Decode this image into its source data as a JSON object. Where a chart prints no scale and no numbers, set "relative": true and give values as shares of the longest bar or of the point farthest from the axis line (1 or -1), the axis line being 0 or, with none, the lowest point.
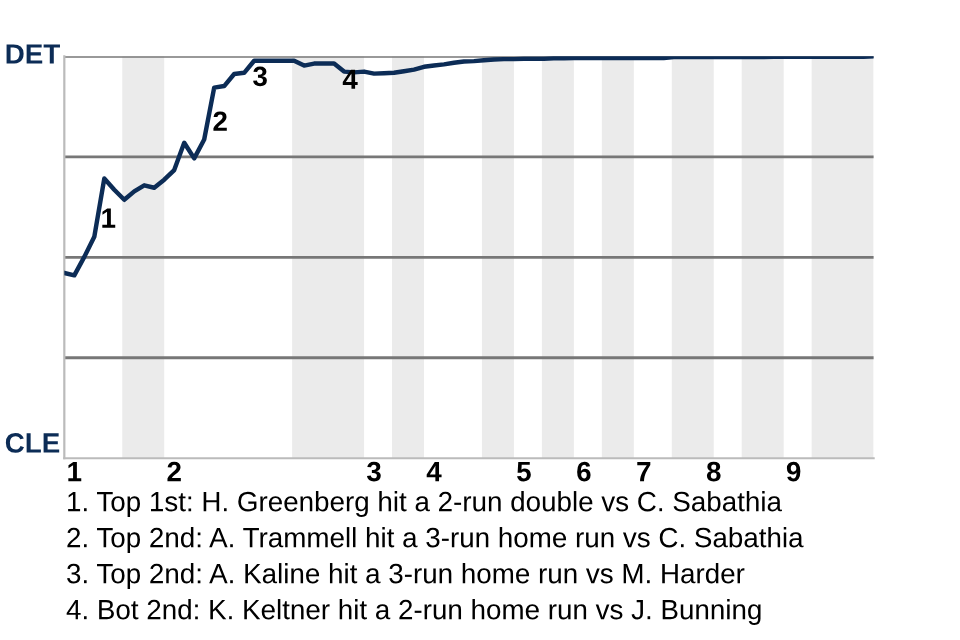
{
  "chart_data": {
    "type": "line",
    "relative": true,
    "categories": [
      null,
      "1",
      null,
      null,
      null,
      null,
      null,
      null,
      null,
      null,
      null,
      "2",
      null,
      null,
      null,
      null,
      null,
      null,
      null,
      null,
      null,
      null,
      null,
      null,
      null,
      null,
      null,
      null,
      null,
      null,
      null,
      "3",
      null,
      null,
      null,
      null,
      null,
      "4",
      null,
      null,
      null,
      null,
      null,
      null,
      null,
      null,
      "5",
      null,
      null,
      null,
      null,
      null,
      "6",
      null,
      null,
      null,
      null,
      null,
      "7",
      null,
      null,
      null,
      null,
      null,
      null,
      "8",
      null,
      null,
      null,
      null,
      null,
      null,
      null,
      "9",
      null,
      null,
      null,
      null,
      null,
      null,
      null,
      null
    ],
    "series": [
      {
        "color": "#0c2c56",
        "values": [
          0.461,
          0.455,
          0.501,
          0.551,
          0.696,
          0.668,
          0.643,
          0.664,
          0.679,
          0.673,
          0.693,
          0.717,
          0.785,
          0.746,
          0.793,
          0.922,
          0.926,
          0.956,
          0.959,
          0.989,
          0.989,
          0.989,
          0.989,
          0.989,
          0.977,
          0.982,
          0.982,
          0.982,
          0.962,
          0.96,
          0.962,
          0.957,
          0.958,
          0.959,
          0.963,
          0.967,
          0.974,
          0.977,
          0.98,
          0.984,
          0.987,
          0.988,
          0.99,
          0.992,
          0.993,
          0.993,
          0.994,
          0.994,
          0.994,
          0.995,
          0.995,
          0.996,
          0.996,
          0.996,
          0.996,
          0.996,
          0.996,
          0.996,
          0.996,
          0.996,
          0.996,
          0.998,
          0.998,
          0.998,
          0.998,
          0.998,
          0.998,
          0.998,
          0.998,
          0.998,
          0.998,
          0.999,
          0.999,
          0.999,
          0.999,
          0.999,
          0.999,
          0.999,
          0.999,
          0.999,
          0.999,
          1
        ]
      }
    ],
    "marker": "none",
    "line_style": "solid",
    "legend": false,
    "ref_lines": [
      {
        "axis": "y",
        "value": 0.25,
        "color": "#777777"
      },
      {
        "axis": "y",
        "value": 0.5,
        "color": "#777777"
      },
      {
        "axis": "y",
        "value": 0.75,
        "color": "#777777"
      },
      {
        "axis": "y",
        "value": 1,
        "color": "#777777"
      }
    ],
    "annotations": [
      "1",
      "2",
      "3",
      "4",
      "DET",
      "CLE",
      "1. Top 1st: H. Greenberg hit a 2-run double vs C. Sabathia",
      "2. Top 2nd: A. Trammell hit a 3-run home run vs C. Sabathia",
      "3. Top 2nd: A. Kaline hit a 3-run home run vs M. Harder",
      "4. Bot 2nd: K. Keltner hit a 2-run home run vs J. Bunning"
    ]
  }
}
